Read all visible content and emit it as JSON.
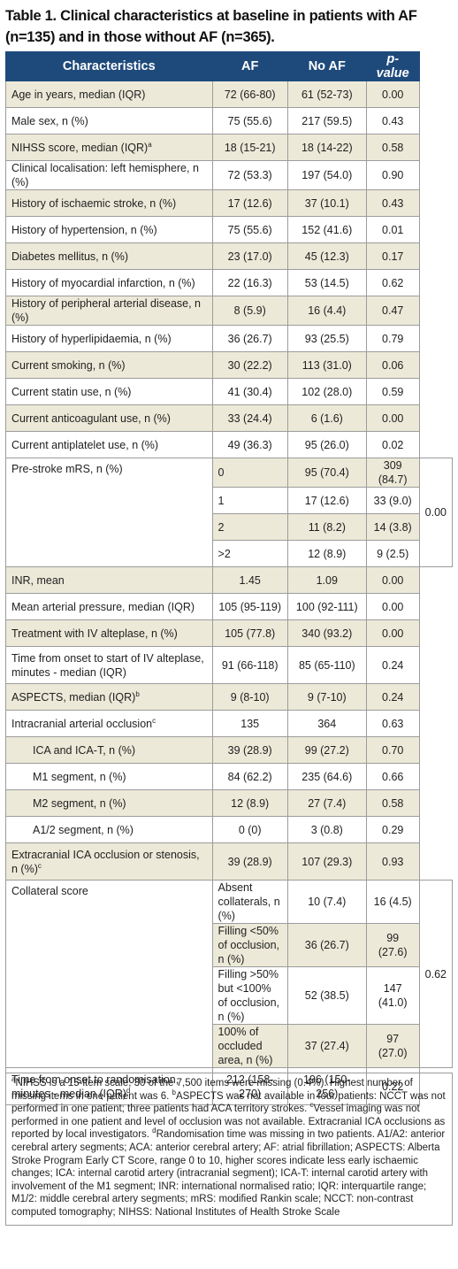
{
  "title": "Table 1. Clinical characteristics at baseline in patients with AF (n=135) and in those without AF (n=365).",
  "headers": {
    "characteristics": "Characteristics",
    "af": "AF",
    "no_af": "No AF",
    "p_value": "p-value"
  },
  "rows": [
    {
      "label": "Age in years, median (IQR)",
      "af": "72 (66-80)",
      "noaf": "61 (52-73)",
      "p": "0.00"
    },
    {
      "label": "Male sex, n (%)",
      "af": "75 (55.6)",
      "noaf": "217 (59.5)",
      "p": "0.43"
    },
    {
      "label": "NIHSS score, median (IQR)",
      "sup": "a",
      "af": "18 (15-21)",
      "noaf": "18 (14-22)",
      "p": "0.58"
    },
    {
      "label": "Clinical localisation: left hemisphere, n (%)",
      "af": "72 (53.3)",
      "noaf": "197 (54.0)",
      "p": "0.90"
    },
    {
      "label": "History of ischaemic stroke, n (%)",
      "af": "17 (12.6)",
      "noaf": "37 (10.1)",
      "p": "0.43"
    },
    {
      "label": "History of hypertension, n (%)",
      "af": "75 (55.6)",
      "noaf": "152 (41.6)",
      "p": "0.01"
    },
    {
      "label": "Diabetes mellitus, n (%)",
      "af": "23 (17.0)",
      "noaf": "45 (12.3)",
      "p": "0.17"
    },
    {
      "label": "History of myocardial infarction, n (%)",
      "af": "22 (16.3)",
      "noaf": "53 (14.5)",
      "p": "0.62"
    },
    {
      "label": "History of peripheral arterial disease, n (%)",
      "af": "8 (5.9)",
      "noaf": "16 (4.4)",
      "p": "0.47"
    },
    {
      "label": "History of hyperlipidaemia, n (%)",
      "af": "36 (26.7)",
      "noaf": "93 (25.5)",
      "p": "0.79"
    },
    {
      "label": "Current smoking, n (%)",
      "af": "30 (22.2)",
      "noaf": "113 (31.0)",
      "p": "0.06"
    },
    {
      "label": "Current statin use, n (%)",
      "af": "41 (30.4)",
      "noaf": "102 (28.0)",
      "p": "0.59"
    },
    {
      "label": "Current anticoagulant use, n (%)",
      "af": "33 (24.4)",
      "noaf": "6 (1.6)",
      "p": "0.00"
    },
    {
      "label": "Current antiplatelet use, n (%)",
      "af": "49 (36.3)",
      "noaf": "95 (26.0)",
      "p": "0.02"
    }
  ],
  "mrs": {
    "label": "Pre-stroke mRS, n (%)",
    "p": "0.00",
    "rows": [
      {
        "label": "0",
        "af": "95 (70.4)",
        "noaf": "309 (84.7)"
      },
      {
        "label": "1",
        "af": "17 (12.6)",
        "noaf": "33 (9.0)"
      },
      {
        "label": "2",
        "af": "11 (8.2)",
        "noaf": "14 (3.8)"
      },
      {
        "label": ">2",
        "af": "12 (8.9)",
        "noaf": "9 (2.5)"
      }
    ]
  },
  "rows2": [
    {
      "label": "INR, mean",
      "af": "1.45",
      "noaf": "1.09",
      "p": "0.00"
    },
    {
      "label": "Mean arterial pressure, median (IQR)",
      "af": "105 (95-119)",
      "noaf": "100 (92-111)",
      "p": "0.00"
    },
    {
      "label": "Treatment with IV alteplase, n (%)",
      "af": "105 (77.8)",
      "noaf": "340 (93.2)",
      "p": "0.00"
    },
    {
      "label": "Time from onset to start of IV alteplase, minutes - median (IQR)",
      "af": "91 (66-118)",
      "noaf": "85 (65-110)",
      "p": "0.24"
    },
    {
      "label": "ASPECTS, median (IQR)",
      "sup": "b",
      "af": "9 (8-10)",
      "noaf": "9 (7-10)",
      "p": "0.24"
    },
    {
      "label": "Intracranial arterial occlusion",
      "sup": "c",
      "af": "135",
      "noaf": "364",
      "p": "0.63"
    },
    {
      "label": "ICA and ICA-T, n (%)",
      "af": "39 (28.9)",
      "noaf": "99 (27.2)",
      "p": "0.70"
    },
    {
      "label": "M1 segment, n (%)",
      "af": "84 (62.2)",
      "noaf": "235 (64.6)",
      "p": "0.66"
    },
    {
      "label": "M2 segment, n (%)",
      "af": "12 (8.9)",
      "noaf": "27 (7.4)",
      "p": "0.58"
    },
    {
      "label": "A1/2 segment, n (%)",
      "af": "0 (0)",
      "noaf": "3 (0.8)",
      "p": "0.29"
    },
    {
      "label": "Extracranial ICA occlusion or stenosis, n (%)",
      "sup": "c",
      "af": "39 (28.9)",
      "noaf": "107 (29.3)",
      "p": "0.93"
    }
  ],
  "collateral": {
    "label": "Collateral score",
    "p": "0.62",
    "rows": [
      {
        "label": "Absent collaterals, n (%)",
        "af": "10 (7.4)",
        "noaf": "16 (4.5)"
      },
      {
        "label": "Filling <50% of occlusion, n (%)",
        "af": "36 (26.7)",
        "noaf": "99 (27.6)"
      },
      {
        "label": "Filling >50% but <100% of occlusion, n (%)",
        "af": "52 (38.5)",
        "noaf": "147 (41.0)"
      },
      {
        "label": "100% of occluded area, n (%)",
        "af": "37 (27.4)",
        "noaf": "97 (27.0)"
      }
    ]
  },
  "last_row": {
    "label": "Time from onset to randomisation, minutes - median (IQR)",
    "sup": "d",
    "af": "212 (158-270)",
    "noaf": "196 (150-256)",
    "p": "0.22"
  },
  "footnote": {
    "a_mark": "a",
    "a": "NIHSS is a 15-item scale; 30 of the 7,500 items were missing (0.4%). Highest number of missing items in one patient was 6. ",
    "b_mark": "b",
    "b": "ASPECTS was not available in four patients: NCCT was not performed in one patient; three patients had ACA territory strokes. ",
    "c_mark": "c",
    "c": "Vessel imaging was not performed in one patient and level of occlusion was not available. Extracranial ICA occlusions as reported by local investigators. ",
    "d_mark": "d",
    "d": "Randomisation time was missing in two patients. A1/A2: anterior cerebral artery segments; ACA: anterior cerebral artery; AF: atrial fibrillation; ASPECTS: Alberta Stroke Program Early CT Score, range 0 to 10, higher scores indicate less early ischaemic changes; ICA: internal carotid artery (intracranial segment); ICA-T: internal carotid artery with involvement of the M1 segment; INR: international normalised ratio; IQR: interquartile range; M1/2: middle cerebral artery segments; mRS: modified Rankin scale; NCCT: non-contrast computed tomography; NIHSS: National Institutes of Health Stroke Scale"
  }
}
